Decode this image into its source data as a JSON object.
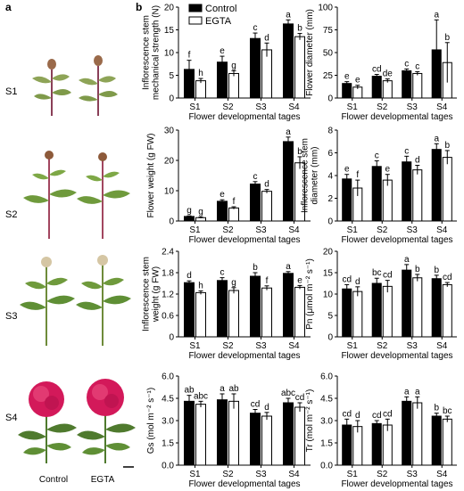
{
  "panel_a": {
    "label": "a",
    "row_labels": [
      "S1",
      "S2",
      "S3",
      "S4"
    ],
    "col_labels": [
      "Control",
      "EGTA"
    ]
  },
  "panel_b_label": "b",
  "legend": {
    "entries": [
      "Control",
      "EGTA"
    ]
  },
  "colors": {
    "control": "#000000",
    "egta": "#ffffff",
    "stem_pink": "#b14a6c",
    "leaf_green": "#6f9a3c",
    "flower_magenta": "#d3195a"
  },
  "chart_data": [
    {
      "type": "bar",
      "ylabel_lines": [
        "Inflorescence stem",
        "mechanical strength (N)"
      ],
      "xlabel": "Flower developmental tages",
      "categories": [
        "S1",
        "S2",
        "S3",
        "S4"
      ],
      "ylim": [
        0,
        20
      ],
      "yticks": [
        "0",
        "5",
        "10",
        "15",
        "20"
      ],
      "series": [
        {
          "name": "Control",
          "values": [
            6.3,
            7.9,
            13.1,
            16.3
          ],
          "errors": [
            2.0,
            1.3,
            1.2,
            0.9
          ],
          "letters": [
            "f",
            "e",
            "c",
            "a"
          ]
        },
        {
          "name": "EGTA",
          "values": [
            3.8,
            5.4,
            10.6,
            13.5
          ],
          "errors": [
            0.5,
            0.6,
            1.5,
            0.7
          ],
          "letters": [
            "h",
            "g",
            "d",
            "b"
          ]
        }
      ]
    },
    {
      "type": "bar",
      "ylabel_lines": [
        "Flower diameter (mm)"
      ],
      "xlabel": "Flower developmental tages",
      "categories": [
        "S1",
        "S2",
        "S3",
        "S4"
      ],
      "ylim": [
        0,
        100
      ],
      "yticks": [
        "0",
        "25",
        "50",
        "75",
        "100"
      ],
      "series": [
        {
          "name": "Control",
          "values": [
            16,
            24,
            30,
            53
          ],
          "errors": [
            2,
            2,
            2,
            33
          ],
          "letters": [
            "e",
            "cd",
            "c",
            "a"
          ]
        },
        {
          "name": "EGTA",
          "values": [
            12,
            19,
            27,
            39
          ],
          "errors": [
            2,
            2,
            2,
            22
          ],
          "letters": [
            "e",
            "de",
            "c",
            "b"
          ]
        }
      ]
    },
    {
      "type": "bar",
      "ylabel_lines": [
        "Flower weight (g FW)"
      ],
      "xlabel": "Flower developmental tages",
      "categories": [
        "S1",
        "S2",
        "S3",
        "S4"
      ],
      "ylim": [
        0,
        30
      ],
      "yticks": [
        "0",
        "10",
        "20",
        "30"
      ],
      "series": [
        {
          "name": "Control",
          "values": [
            1.5,
            6.5,
            12.2,
            26.2
          ],
          "errors": [
            0.2,
            0.5,
            0.8,
            1.5
          ],
          "letters": [
            "g",
            "e",
            "c",
            "a"
          ]
        },
        {
          "name": "EGTA",
          "values": [
            1.1,
            4.3,
            9.8,
            19.2
          ],
          "errors": [
            0.2,
            0.4,
            0.6,
            2.0
          ],
          "letters": [
            "g",
            "f",
            "d",
            "b"
          ]
        }
      ]
    },
    {
      "type": "bar",
      "ylabel_lines": [
        "Inflorescence stem",
        "diameter (mm)"
      ],
      "xlabel": "Flower developmental tages",
      "categories": [
        "S1",
        "S2",
        "S3",
        "S4"
      ],
      "ylim": [
        0,
        8
      ],
      "yticks": [
        "0",
        "2",
        "4",
        "6",
        "8"
      ],
      "series": [
        {
          "name": "Control",
          "values": [
            3.7,
            4.8,
            5.2,
            6.3
          ],
          "errors": [
            0.4,
            0.5,
            0.5,
            0.5
          ],
          "letters": [
            "e",
            "c",
            "c",
            "a"
          ]
        },
        {
          "name": "EGTA",
          "values": [
            2.9,
            3.6,
            4.5,
            5.6
          ],
          "errors": [
            0.7,
            0.5,
            0.4,
            0.6
          ],
          "letters": [
            "f",
            "e",
            "d",
            "b"
          ]
        }
      ]
    },
    {
      "type": "bar",
      "ylabel_lines": [
        "Inflorescence stem",
        "weight (g FW)"
      ],
      "xlabel": "Flower developmental tages",
      "categories": [
        "S1",
        "S2",
        "S3",
        "S4"
      ],
      "ylim": [
        0,
        2.4
      ],
      "yticks": [
        "0",
        "0.6",
        "1.2",
        "1.8",
        "2.4"
      ],
      "series": [
        {
          "name": "Control",
          "values": [
            1.52,
            1.58,
            1.7,
            1.78
          ],
          "errors": [
            0.05,
            0.08,
            0.1,
            0.05
          ],
          "letters": [
            "d",
            "c",
            "b",
            "a"
          ]
        },
        {
          "name": "EGTA",
          "values": [
            1.24,
            1.3,
            1.37,
            1.39
          ],
          "errors": [
            0.05,
            0.08,
            0.06,
            0.05
          ],
          "letters": [
            "h",
            "g",
            "f",
            "e"
          ]
        }
      ]
    },
    {
      "type": "bar",
      "ylabel_lines": [
        "Pn (μmol m⁻² s⁻¹)"
      ],
      "xlabel": "Flower developmental tages",
      "categories": [
        "S1",
        "S2",
        "S3",
        "S4"
      ],
      "ylim": [
        0,
        20
      ],
      "yticks": [
        "0",
        "5",
        "10",
        "15",
        "20"
      ],
      "series": [
        {
          "name": "Control",
          "values": [
            11.2,
            12.5,
            15.6,
            13.6
          ],
          "errors": [
            1.0,
            1.2,
            1.3,
            0.8
          ],
          "letters": [
            "cd",
            "bc",
            "a",
            "b"
          ]
        },
        {
          "name": "EGTA",
          "values": [
            10.6,
            11.8,
            13.8,
            12.2
          ],
          "errors": [
            1.1,
            1.4,
            0.8,
            0.5
          ],
          "letters": [
            "d",
            "cd",
            "b",
            "cd"
          ]
        }
      ]
    },
    {
      "type": "bar",
      "ylabel_lines": [
        "Gs (mol m⁻² s⁻¹)"
      ],
      "xlabel": "Flower developmental tages",
      "categories": [
        "S1",
        "S2",
        "S3",
        "S4"
      ],
      "ylim": [
        0,
        6.0
      ],
      "yticks": [
        "0.0",
        "1.5",
        "3.0",
        "4.5",
        "6.0"
      ],
      "series": [
        {
          "name": "Control",
          "values": [
            4.3,
            4.4,
            3.5,
            4.2
          ],
          "errors": [
            0.4,
            0.4,
            0.25,
            0.3
          ],
          "letters": [
            "ab",
            "a",
            "cd",
            "abc"
          ]
        },
        {
          "name": "EGTA",
          "values": [
            4.1,
            4.3,
            3.3,
            3.9
          ],
          "errors": [
            0.2,
            0.5,
            0.25,
            0.3
          ],
          "letters": [
            "abc",
            "ab",
            "d",
            "cd"
          ]
        }
      ]
    },
    {
      "type": "bar",
      "ylabel_lines": [
        "Tr (mol m⁻² s⁻¹)"
      ],
      "xlabel": "Flower developmental tages",
      "categories": [
        "S1",
        "S2",
        "S3",
        "S4"
      ],
      "ylim": [
        0,
        6.0
      ],
      "yticks": [
        "0.0",
        "1.5",
        "3.0",
        "4.5",
        "6.0"
      ],
      "series": [
        {
          "name": "Control",
          "values": [
            2.7,
            2.8,
            4.3,
            3.3
          ],
          "errors": [
            0.4,
            0.2,
            0.3,
            0.2
          ],
          "letters": [
            "cd",
            "cd",
            "a",
            "b"
          ]
        },
        {
          "name": "EGTA",
          "values": [
            2.6,
            2.7,
            4.2,
            3.1
          ],
          "errors": [
            0.4,
            0.4,
            0.4,
            0.2
          ],
          "letters": [
            "d",
            "cd",
            "a",
            "bc"
          ]
        }
      ]
    }
  ]
}
